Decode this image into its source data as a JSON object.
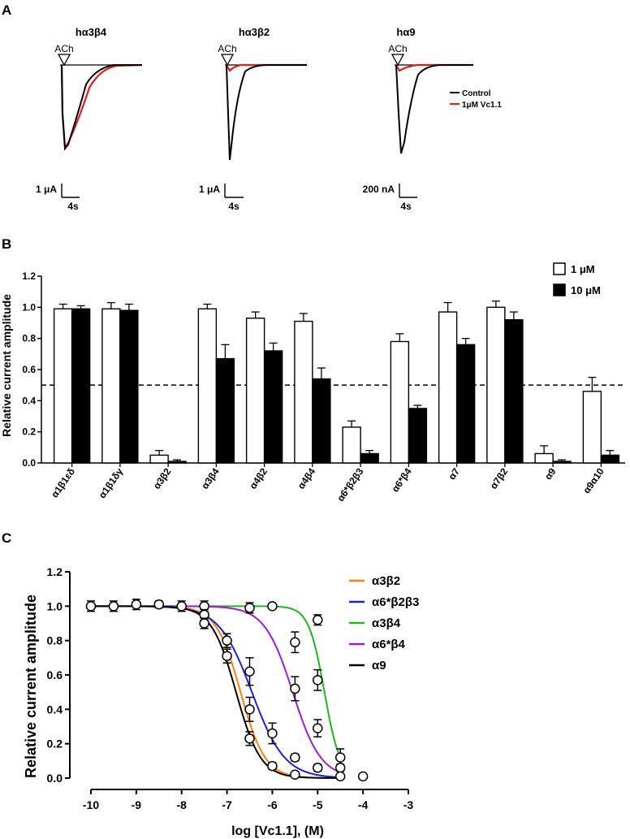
{
  "panels": {
    "a": "A",
    "b": "B",
    "c": "C"
  },
  "colors": {
    "control": "#000000",
    "vc11": "#dc2020",
    "a3b2": "#ff7f0e",
    "a6b2b3": "#1f1fd6",
    "a3b4": "#22b422",
    "a6b4": "#9b1fcf",
    "a9": "#000000"
  },
  "traces": {
    "stimulus": "ACh",
    "legend": {
      "control": "Control",
      "vc11": "1μM Vc1.1"
    },
    "panels": [
      {
        "title": "hα3β4",
        "scale_y": "1 μA",
        "scale_x": "4s"
      },
      {
        "title": "hα3β2",
        "scale_y": "1 μA",
        "scale_x": "4s"
      },
      {
        "title": "hα9",
        "scale_y": "200 nA",
        "scale_x": "4s"
      }
    ]
  },
  "chart_data": [
    {
      "type": "bar",
      "ylabel": "Relative current amplitude",
      "xlabel": "",
      "ylim": [
        0,
        1.2
      ],
      "yticks": [
        "0.0",
        "0.2",
        "0.4",
        "0.6",
        "0.8",
        "1.0",
        "1.2"
      ],
      "reference_line": 0.5,
      "legend_position": "top-right",
      "categories": [
        "α1β1εδ",
        "α1β1δγ",
        "α3β2",
        "α3β4",
        "α4β2",
        "α4β4",
        "α6*β2β3",
        "α6*β4",
        "α7",
        "α7β2",
        "α9",
        "α9α10"
      ],
      "series": [
        {
          "name": "1 μM",
          "fill": "#ffffff",
          "values": [
            0.99,
            0.99,
            0.05,
            0.99,
            0.93,
            0.91,
            0.23,
            0.78,
            0.97,
            1.0,
            0.06,
            0.46
          ],
          "errors": [
            0.03,
            0.04,
            0.03,
            0.03,
            0.04,
            0.05,
            0.04,
            0.05,
            0.06,
            0.04,
            0.05,
            0.09
          ]
        },
        {
          "name": "10 μM",
          "fill": "#000000",
          "values": [
            0.99,
            0.98,
            0.01,
            0.67,
            0.72,
            0.54,
            0.06,
            0.35,
            0.76,
            0.92,
            0.01,
            0.05
          ],
          "errors": [
            0.02,
            0.04,
            0.01,
            0.09,
            0.05,
            0.07,
            0.02,
            0.02,
            0.04,
            0.05,
            0.01,
            0.03
          ]
        }
      ]
    },
    {
      "type": "line",
      "ylabel": "Relative current amplitude",
      "xlabel": "log [Vc1.1], (M)",
      "xlim": [
        -10,
        -3
      ],
      "ylim": [
        0,
        1.2
      ],
      "xticks": [
        "-10",
        "-9",
        "-8",
        "-7",
        "-6",
        "-5",
        "-4",
        "-3"
      ],
      "yticks": [
        "0.0",
        "0.2",
        "0.4",
        "0.6",
        "0.8",
        "1.0",
        "1.2"
      ],
      "legend_position": "right",
      "series": [
        {
          "name": "α3β2",
          "color_key": "a3b2",
          "logIC50": -6.7,
          "hill": 1.6
        },
        {
          "name": "α6*β2β3",
          "color_key": "a6b2b3",
          "logIC50": -6.45,
          "hill": 1.2
        },
        {
          "name": "α3β4",
          "color_key": "a3b4",
          "logIC50": -4.85,
          "hill": 2.5
        },
        {
          "name": "α6*β4",
          "color_key": "a6b4",
          "logIC50": -5.55,
          "hill": 1.4
        },
        {
          "name": "α9",
          "color_key": "a9",
          "logIC50": -6.8,
          "hill": 1.6
        }
      ],
      "points": [
        {
          "x": -10,
          "y": 1.0,
          "err": 0.03
        },
        {
          "x": -9.5,
          "y": 1.0,
          "err": 0.03
        },
        {
          "x": -9,
          "y": 1.01,
          "err": 0.03
        },
        {
          "x": -8.5,
          "y": 1.01,
          "err": 0.02
        },
        {
          "x": -8,
          "y": 1.0,
          "err": 0.03
        },
        {
          "x": -7.5,
          "y": 1.0,
          "err": 0.03
        },
        {
          "x": -7.5,
          "y": 0.95,
          "err": 0.03
        },
        {
          "x": -7.5,
          "y": 0.9,
          "err": 0.03
        },
        {
          "x": -7,
          "y": 0.8,
          "err": 0.04
        },
        {
          "x": -7,
          "y": 0.71,
          "err": 0.04
        },
        {
          "x": -6.5,
          "y": 0.99,
          "err": 0.03
        },
        {
          "x": -6.5,
          "y": 0.62,
          "err": 0.08
        },
        {
          "x": -6.5,
          "y": 0.4,
          "err": 0.07
        },
        {
          "x": -6.5,
          "y": 0.23,
          "err": 0.04
        },
        {
          "x": -6,
          "y": 1.0,
          "err": 0.01
        },
        {
          "x": -6,
          "y": 0.26,
          "err": 0.06
        },
        {
          "x": -6,
          "y": 0.07,
          "err": 0.02
        },
        {
          "x": -5.5,
          "y": 0.79,
          "err": 0.06
        },
        {
          "x": -5.5,
          "y": 0.52,
          "err": 0.07
        },
        {
          "x": -5.5,
          "y": 0.12,
          "err": 0.02
        },
        {
          "x": -5.5,
          "y": 0.02,
          "err": 0.01
        },
        {
          "x": -5,
          "y": 0.92,
          "err": 0.03
        },
        {
          "x": -5,
          "y": 0.57,
          "err": 0.06
        },
        {
          "x": -5,
          "y": 0.29,
          "err": 0.05
        },
        {
          "x": -5,
          "y": 0.06,
          "err": 0.02
        },
        {
          "x": -4.5,
          "y": 0.12,
          "err": 0.05
        },
        {
          "x": -4.5,
          "y": 0.06,
          "err": 0.02
        },
        {
          "x": -4.5,
          "y": 0.01,
          "err": 0.01
        },
        {
          "x": -4,
          "y": 0.01,
          "err": 0.01
        }
      ]
    }
  ]
}
